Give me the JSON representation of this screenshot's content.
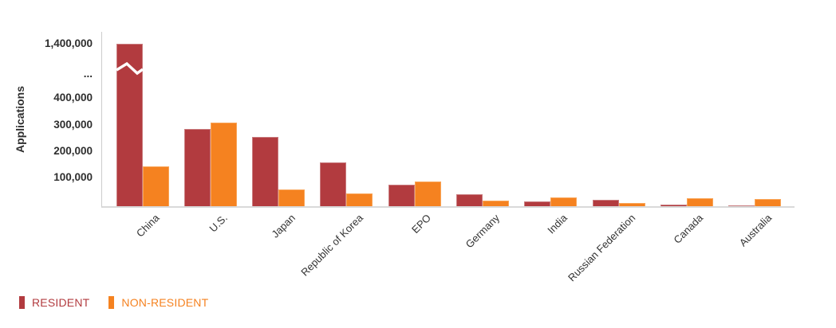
{
  "chart_data": {
    "type": "bar",
    "title": "",
    "ylabel": "Applications",
    "categories": [
      "China",
      "U.S.",
      "Japan",
      "Republic of Korea",
      "EPO",
      "Germany",
      "India",
      "Russian Federation",
      "Canada",
      "Australia"
    ],
    "series": [
      {
        "name": "RESIDENT",
        "color": "#B23B3F",
        "border_color": "#C97B7E",
        "values": [
          1400000,
          290000,
          260000,
          165000,
          82000,
          46000,
          17000,
          24000,
          4500,
          3000
        ]
      },
      {
        "name": "NON-RESIDENT",
        "color": "#F58220",
        "border_color": "#F9A558",
        "values": [
          150000,
          315000,
          62000,
          47000,
          93000,
          21000,
          34000,
          13000,
          29000,
          27000
        ]
      }
    ],
    "yticks": [
      "1,400,000",
      "...",
      "400,000",
      "300,000",
      "200,000",
      "100,000"
    ],
    "ylim_display": [
      0,
      450000
    ],
    "axis_break": {
      "present": true,
      "between": [
        "400,000",
        "1,400,000"
      ],
      "applies_to": "China RESIDENT bar"
    },
    "grid": false,
    "legend_position": "bottom-left",
    "axis_color": "#CCCCCC",
    "text_color": "#2E2E2E"
  }
}
